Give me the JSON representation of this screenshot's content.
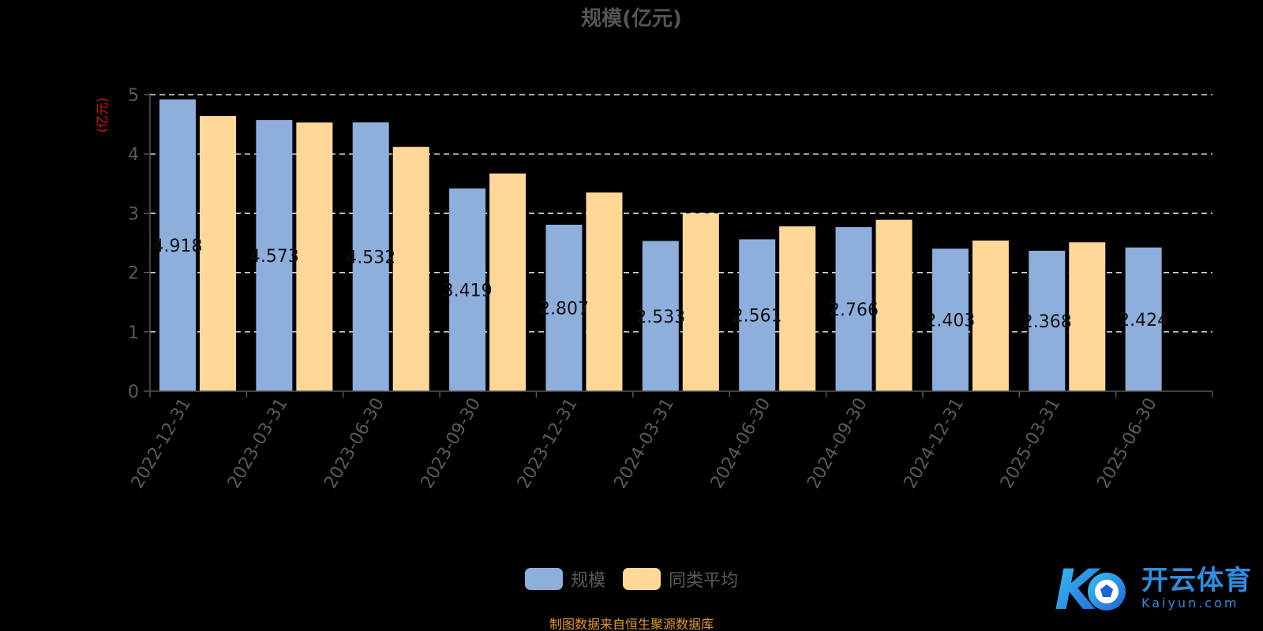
{
  "chart_data": {
    "type": "bar",
    "title": "规模(亿元)",
    "ylabel": "(亿元)",
    "xlabel": "",
    "ylim": [
      0,
      5
    ],
    "yticks": [
      "0",
      "1",
      "2",
      "3",
      "4",
      "5"
    ],
    "grid": true,
    "legend_position": "bottom",
    "categories": [
      "2022-12-31",
      "2023-03-31",
      "2023-06-30",
      "2023-09-30",
      "2023-12-31",
      "2024-03-31",
      "2024-06-30",
      "2024-09-30",
      "2024-12-31",
      "2025-03-31",
      "2025-06-30"
    ],
    "series": [
      {
        "name": "规模",
        "color": "#8eaedc",
        "values": [
          4.918,
          4.573,
          4.532,
          3.419,
          2.807,
          2.533,
          2.561,
          2.766,
          2.403,
          2.368,
          2.424
        ],
        "labels": [
          "4.918",
          "4.573",
          "4.532",
          "3.419",
          "2.807",
          "2.533",
          "2.561",
          "2.766",
          "2.403",
          "2.368",
          "2.424"
        ]
      },
      {
        "name": "同类平均",
        "color": "#ffd898",
        "values": [
          4.64,
          4.53,
          4.12,
          3.67,
          3.35,
          3.0,
          2.78,
          2.89,
          2.54,
          2.51,
          null
        ]
      }
    ]
  },
  "footer": {
    "source_note": "制图数据来自恒生聚源数据库"
  },
  "watermark": {
    "brand_cn": "开云体育",
    "brand_en": "Kaiyun.com",
    "logo_letter": "K"
  },
  "colors": {
    "background": "#000000",
    "axis_text": "#5a5a5a",
    "ylabel": "#e01010",
    "grid": "#dddddd",
    "source_note": "#e39b2e",
    "brand": "#2f8de0"
  }
}
